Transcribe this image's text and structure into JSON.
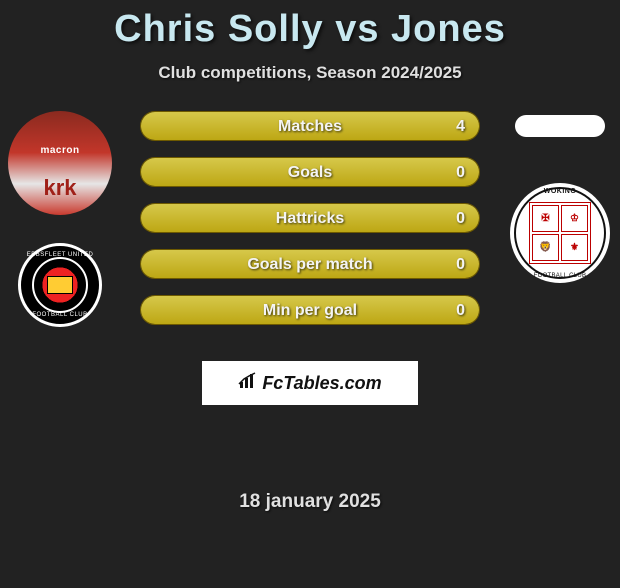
{
  "title": "Chris Solly vs Jones",
  "subtitle": "Club competitions, Season 2024/2025",
  "date": "18 january 2025",
  "colors": {
    "background": "#222222",
    "title": "#c8e8f0",
    "text": "#e0e0e0",
    "bar_fill_top": "#d6c84a",
    "bar_fill_bottom": "#bda714",
    "bar_border": "#6e5a00",
    "logo_bg": "#ffffff",
    "logo_text": "#111111"
  },
  "player1": {
    "name": "Chris Solly",
    "jersey_brand": "macron",
    "jersey_sponsor": "krk",
    "club_ring_top": "EBBSFLEET UNITED",
    "club_ring_bottom": "FOOTBALL CLUB"
  },
  "player2": {
    "name": "Jones",
    "club_top": "WOKING",
    "club_bottom": "FOOTBALL CLUB",
    "shield_quads": [
      "✠",
      "♔",
      "🦁",
      "⚜"
    ]
  },
  "stats": [
    {
      "label": "Matches",
      "p1": "4",
      "p2": "",
      "p1_pct": 100,
      "p2_pct": 0
    },
    {
      "label": "Goals",
      "p1": "0",
      "p2": "",
      "p1_pct": 100,
      "p2_pct": 0
    },
    {
      "label": "Hattricks",
      "p1": "0",
      "p2": "",
      "p1_pct": 100,
      "p2_pct": 0
    },
    {
      "label": "Goals per match",
      "p1": "0",
      "p2": "",
      "p1_pct": 100,
      "p2_pct": 0
    },
    {
      "label": "Min per goal",
      "p1": "0",
      "p2": "",
      "p1_pct": 100,
      "p2_pct": 0
    }
  ],
  "logo_text": "FcTables.com"
}
